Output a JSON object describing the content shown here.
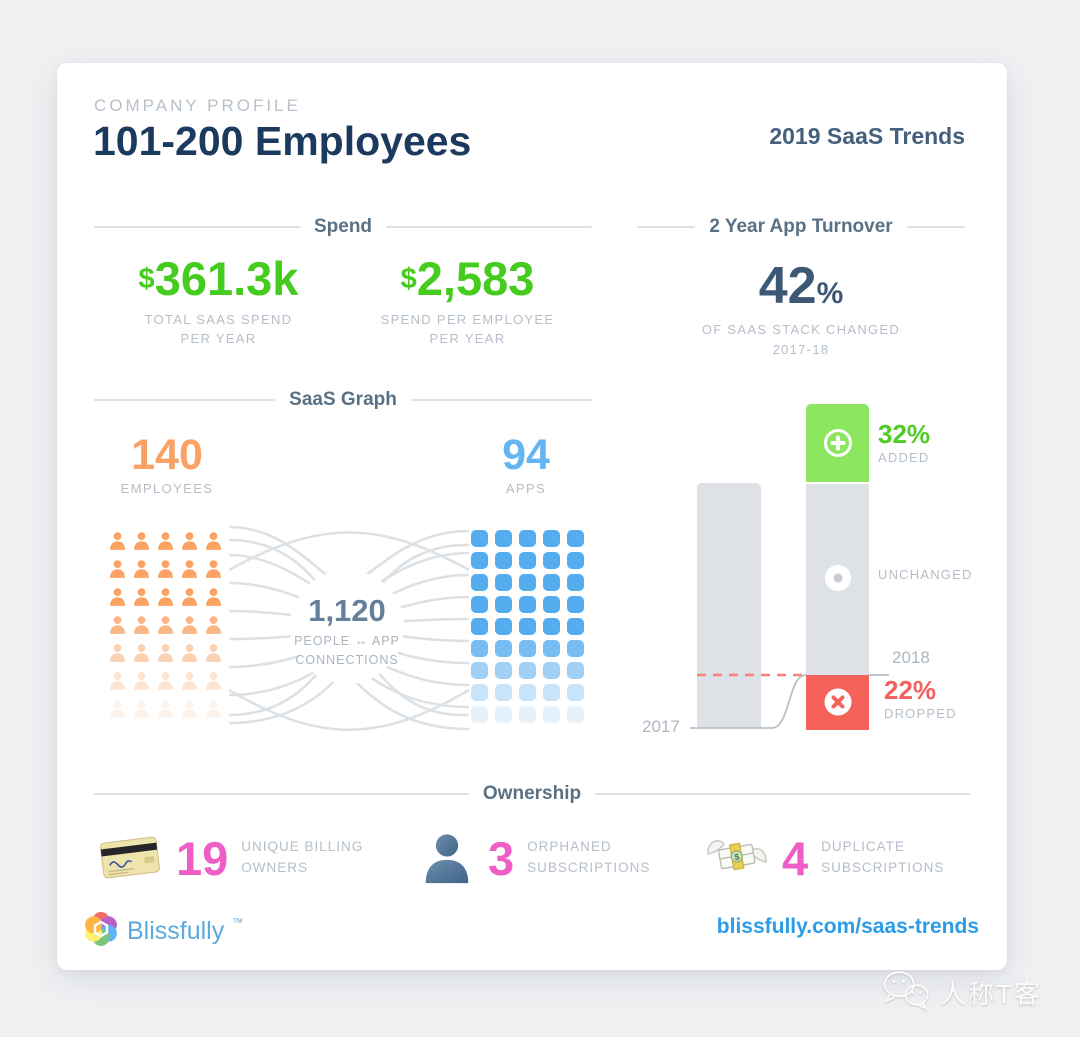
{
  "header": {
    "eyebrow": "COMPANY PROFILE",
    "title": "101-200 Employees",
    "brand": "2019 SaaS Trends"
  },
  "spend": {
    "section_title": "Spend",
    "stats": [
      {
        "prefix": "$",
        "value": "361.3k",
        "label_line1": "TOTAL SAAS SPEND",
        "label_line2": "PER YEAR"
      },
      {
        "prefix": "$",
        "value": "2,583",
        "label_line1": "SPEND PER EMPLOYEE",
        "label_line2": "PER YEAR"
      }
    ]
  },
  "turnover": {
    "section_title": "2 Year App Turnover",
    "value": "42",
    "unit": "%",
    "label_line1": "OF SAAS STACK CHANGED",
    "label_line2": "2017-18",
    "chart": {
      "year_left": "2017",
      "year_right": "2018",
      "added_pct": "32%",
      "added_label": "ADDED",
      "unchanged_label": "UNCHANGED",
      "dropped_pct": "22%",
      "dropped_label": "DROPPED"
    }
  },
  "saas_graph": {
    "section_title": "SaaS Graph",
    "employees": {
      "value": "140",
      "label": "EMPLOYEES"
    },
    "apps": {
      "value": "94",
      "label": "APPS"
    },
    "connections": {
      "value": "1,120",
      "label_line1": "PEOPLE ↔ APP",
      "label_line2": "CONNECTIONS"
    },
    "people_grid": {
      "cols": 5,
      "row_opacities": [
        1,
        1,
        1,
        0.78,
        0.5,
        0.28,
        0.12
      ]
    },
    "apps_grid": {
      "cols": 5,
      "row_opacities": [
        1,
        1,
        1,
        1,
        1,
        0.8,
        0.55,
        0.32,
        0.15
      ]
    }
  },
  "ownership": {
    "section_title": "Ownership",
    "items": [
      {
        "icon": "credit-card",
        "value": "19",
        "label_line1": "UNIQUE BILLING",
        "label_line2": "OWNERS"
      },
      {
        "icon": "person-silhouette",
        "value": "3",
        "label_line1": "ORPHANED",
        "label_line2": "SUBSCRIPTIONS"
      },
      {
        "icon": "flying-money",
        "value": "4",
        "label_line1": "DUPLICATE",
        "label_line2": "SUBSCRIPTIONS"
      }
    ]
  },
  "footer": {
    "brand_name": "Blissfully",
    "trademark": "™",
    "url": "blissfully.com/saas-trends"
  },
  "watermark": {
    "text": "人称T客"
  },
  "colors": {
    "green": "#45cc1e",
    "bar_green": "#8ce65f",
    "orange": "#f9a263",
    "blue": "#64b5f2",
    "pink": "#ee5ec6",
    "red": "#f5625a",
    "navy": "#1c3a5e",
    "slate": "#3b5975",
    "gray_bar": "#dee2e6",
    "caption_gray": "#b5bec8",
    "link_blue": "#2b9ce8"
  },
  "chart_data": [
    {
      "type": "bar",
      "title": "2 Year App Turnover",
      "categories": [
        "2017",
        "2018"
      ],
      "series": [
        {
          "name": "Added",
          "values": [
            0,
            32
          ],
          "color": "#8ce65f"
        },
        {
          "name": "Unchanged",
          "values": [
            100,
            46
          ],
          "color": "#dee2e6"
        },
        {
          "name": "Dropped",
          "values": [
            0,
            22
          ],
          "color": "#f5625a"
        }
      ],
      "annotations": [
        "32% ADDED",
        "UNCHANGED",
        "22% DROPPED",
        "42% OF SAAS STACK CHANGED 2017-18"
      ],
      "legend_position": "right",
      "grid": false
    },
    {
      "type": "table",
      "title": "Company Profile: 101-200 Employees (2019 SaaS Trends)",
      "rows": [
        [
          "Total SaaS spend per year",
          "$361.3k"
        ],
        [
          "Spend per employee per year",
          "$2,583"
        ],
        [
          "2 year app turnover",
          "42%"
        ],
        [
          "Employees",
          "140"
        ],
        [
          "Apps",
          "94"
        ],
        [
          "People-app connections",
          "1,120"
        ],
        [
          "Unique billing owners",
          "19"
        ],
        [
          "Orphaned subscriptions",
          "3"
        ],
        [
          "Duplicate subscriptions",
          "4"
        ]
      ]
    }
  ]
}
